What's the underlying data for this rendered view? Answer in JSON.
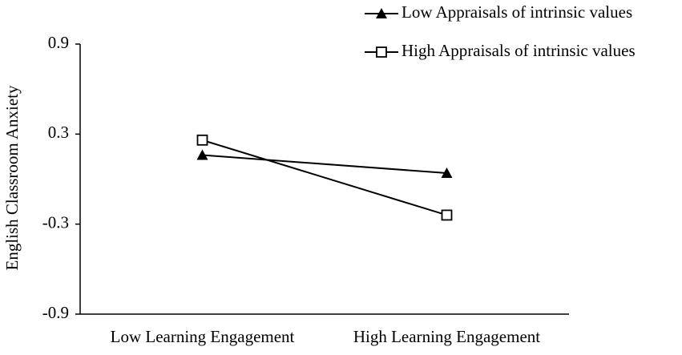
{
  "chart_data": {
    "type": "line",
    "y_label": "English Classroom Anxiety",
    "categories": [
      "Low Learning Engagement",
      "High Learning Engagement"
    ],
    "series": [
      {
        "name": "Low Appraisals of intrinsic values",
        "color": "#000000",
        "marker": "triangle",
        "values": [
          0.16,
          0.04
        ]
      },
      {
        "name": "High Appraisals of intrinsic values",
        "color": "#000000",
        "marker": "square",
        "values": [
          0.26,
          -0.24
        ]
      }
    ],
    "ylim": [
      -0.9,
      0.9
    ],
    "yticks": [
      0.9,
      0.3,
      -0.3,
      -0.9
    ],
    "grid": false,
    "legend": "top-right"
  }
}
